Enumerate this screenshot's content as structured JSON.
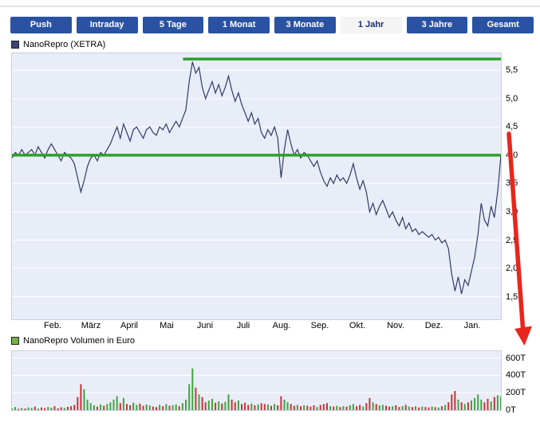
{
  "toolbar": {
    "buttons": [
      {
        "label": "Push",
        "active": false
      },
      {
        "label": "Intraday",
        "active": false
      },
      {
        "label": "5 Tage",
        "active": false
      },
      {
        "label": "1 Monat",
        "active": false
      },
      {
        "label": "3 Monate",
        "active": false
      },
      {
        "label": "1 Jahr",
        "active": true
      },
      {
        "label": "3 Jahre",
        "active": false
      },
      {
        "label": "Gesamt",
        "active": false
      }
    ]
  },
  "price_chart": {
    "legend": "NanoRepro (XETRA)"
  },
  "volume_chart": {
    "legend": "NanoRepro Volumen in Euro"
  },
  "colors": {
    "accent_blue": "#2a52a3",
    "price_line": "#333b66",
    "annotation_green": "#2ba12b",
    "arrow_red": "#e8261c",
    "volume_up": "#3fa33f",
    "volume_down": "#cc3333",
    "plot_background": "#e9edf8"
  },
  "chart_data": [
    {
      "type": "line",
      "title": "NanoRepro (XETRA)",
      "x_axis_labels": [
        "Feb.",
        "März",
        "April",
        "Mai",
        "Juni",
        "Juli",
        "Aug.",
        "Sep.",
        "Okt.",
        "Nov.",
        "Dez.",
        "Jan."
      ],
      "y_ticks": [
        {
          "label": "5,5",
          "value": 5.5
        },
        {
          "label": "5,0",
          "value": 5.0
        },
        {
          "label": "4,5",
          "value": 4.5
        },
        {
          "label": "4,0",
          "value": 4.0
        },
        {
          "label": "3,5",
          "value": 3.5
        },
        {
          "label": "3,0",
          "value": 3.0
        },
        {
          "label": "2,5",
          "value": 2.5
        },
        {
          "label": "2,0",
          "value": 2.0
        },
        {
          "label": "1,5",
          "value": 1.5
        }
      ],
      "ylim": [
        1.1,
        5.8
      ],
      "grid": "horizontal-white",
      "legend_position": "top-left",
      "series": [
        {
          "name": "NanoRepro (XETRA)",
          "values": [
            3.95,
            4.05,
            4.0,
            4.1,
            4.0,
            4.05,
            4.1,
            4.0,
            4.15,
            4.05,
            3.95,
            4.1,
            4.2,
            4.1,
            4.0,
            3.9,
            4.05,
            4.0,
            3.95,
            3.85,
            3.6,
            3.35,
            3.55,
            3.8,
            3.95,
            4.0,
            3.9,
            4.05,
            4.0,
            4.1,
            4.2,
            4.35,
            4.5,
            4.3,
            4.55,
            4.4,
            4.25,
            4.45,
            4.5,
            4.4,
            4.3,
            4.45,
            4.5,
            4.4,
            4.35,
            4.5,
            4.45,
            4.55,
            4.4,
            4.5,
            4.6,
            4.5,
            4.65,
            4.8,
            5.3,
            5.65,
            5.45,
            5.55,
            5.2,
            5.0,
            5.15,
            5.3,
            5.1,
            5.25,
            5.05,
            5.2,
            5.4,
            5.15,
            4.95,
            5.1,
            4.9,
            4.75,
            4.6,
            4.75,
            4.55,
            4.65,
            4.4,
            4.3,
            4.45,
            4.35,
            4.5,
            4.3,
            3.6,
            4.1,
            4.45,
            4.2,
            4.0,
            4.1,
            3.95,
            4.05,
            4.0,
            3.9,
            3.8,
            3.9,
            3.7,
            3.55,
            3.45,
            3.6,
            3.5,
            3.65,
            3.55,
            3.6,
            3.5,
            3.65,
            3.85,
            3.6,
            3.4,
            3.55,
            3.35,
            3.0,
            3.15,
            2.95,
            3.1,
            3.2,
            3.05,
            2.9,
            3.0,
            2.85,
            2.75,
            2.9,
            2.7,
            2.8,
            2.65,
            2.7,
            2.6,
            2.65,
            2.6,
            2.55,
            2.6,
            2.5,
            2.55,
            2.45,
            2.5,
            2.35,
            1.9,
            1.6,
            1.85,
            1.55,
            1.8,
            1.7,
            1.95,
            2.2,
            2.6,
            3.15,
            2.85,
            2.75,
            3.1,
            2.9,
            3.35,
            4.0
          ]
        }
      ],
      "annotations": {
        "horizontal_lines": [
          {
            "value": 5.7,
            "start_fraction": 0.35,
            "color": "#2ba12b"
          },
          {
            "value": 4.0,
            "start_fraction": 0.0,
            "color": "#2ba12b"
          }
        ],
        "arrow": {
          "color": "#e8261c",
          "direction": "down",
          "location": "right price axis, pointing down past 1,5"
        }
      }
    },
    {
      "type": "bar",
      "title": "NanoRepro Volumen in Euro",
      "y_ticks": [
        {
          "label": "600T",
          "value": 600
        },
        {
          "label": "400T",
          "value": 400
        },
        {
          "label": "200T",
          "value": 200
        },
        {
          "label": "0T",
          "value": 0
        }
      ],
      "ylim": [
        0,
        680
      ],
      "values": [
        20,
        35,
        15,
        25,
        18,
        30,
        25,
        40,
        18,
        30,
        22,
        35,
        28,
        45,
        20,
        32,
        26,
        38,
        45,
        60,
        150,
        300,
        240,
        120,
        80,
        55,
        40,
        65,
        50,
        70,
        90,
        120,
        160,
        80,
        140,
        70,
        55,
        85,
        60,
        75,
        50,
        65,
        55,
        40,
        35,
        60,
        45,
        70,
        50,
        55,
        65,
        45,
        80,
        120,
        300,
        480,
        260,
        180,
        150,
        90,
        110,
        130,
        85,
        100,
        75,
        95,
        180,
        120,
        90,
        110,
        70,
        85,
        60,
        75,
        55,
        65,
        80,
        70,
        65,
        50,
        70,
        55,
        160,
        120,
        90,
        70,
        50,
        60,
        45,
        55,
        50,
        40,
        55,
        35,
        60,
        70,
        80,
        45,
        40,
        50,
        35,
        45,
        40,
        55,
        70,
        45,
        60,
        40,
        80,
        140,
        90,
        70,
        55,
        60,
        50,
        40,
        45,
        55,
        35,
        45,
        60,
        40,
        35,
        45,
        30,
        40,
        35,
        30,
        40,
        35,
        30,
        45,
        60,
        90,
        180,
        220,
        120,
        90,
        70,
        90,
        110,
        140,
        180,
        120,
        90,
        130,
        100,
        150,
        170,
        160
      ]
    }
  ]
}
